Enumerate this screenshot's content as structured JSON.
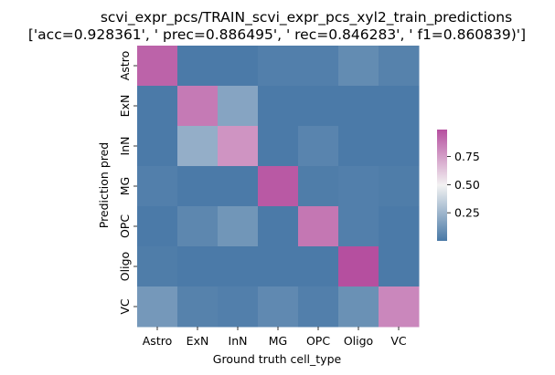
{
  "chart_data": {
    "type": "heatmap",
    "title": "scvi_expr_pcs/TRAIN_scvi_expr_pcs_xyl2_train_predictions",
    "subtitle": "['acc=0.928361', '  prec=0.886495', ' rec=0.846283', ' f1=0.860839)']",
    "xlabel": "Ground truth cell_type",
    "ylabel": "Prediction pred",
    "x_categories": [
      "Astro",
      "ExN",
      "InN",
      "MG",
      "OPC",
      "Oligo",
      "VC"
    ],
    "y_categories": [
      "Astro",
      "ExN",
      "InN",
      "MG",
      "OPC",
      "Oligo",
      "VC"
    ],
    "values": [
      [
        0.93,
        0.01,
        0.01,
        0.03,
        0.03,
        0.08,
        0.04
      ],
      [
        0.01,
        0.86,
        0.18,
        0.01,
        0.01,
        0.01,
        0.01
      ],
      [
        0.01,
        0.22,
        0.78,
        0.01,
        0.05,
        0.01,
        0.01
      ],
      [
        0.03,
        0.01,
        0.01,
        0.96,
        0.02,
        0.03,
        0.02
      ],
      [
        0.01,
        0.06,
        0.12,
        0.01,
        0.87,
        0.03,
        0.01
      ],
      [
        0.02,
        0.01,
        0.01,
        0.01,
        0.01,
        0.99,
        0.01
      ],
      [
        0.13,
        0.04,
        0.03,
        0.07,
        0.03,
        0.1,
        0.82
      ]
    ],
    "vmin": 0.0,
    "vmax": 0.99,
    "colorbar": {
      "ticks": [
        0.25,
        0.5,
        0.75
      ],
      "tick_labels": [
        "0.25",
        "0.50",
        "0.75"
      ]
    },
    "colormap": {
      "low": "#4878a6",
      "mid": "#f2f2f2",
      "high": "#b54f9f"
    }
  }
}
